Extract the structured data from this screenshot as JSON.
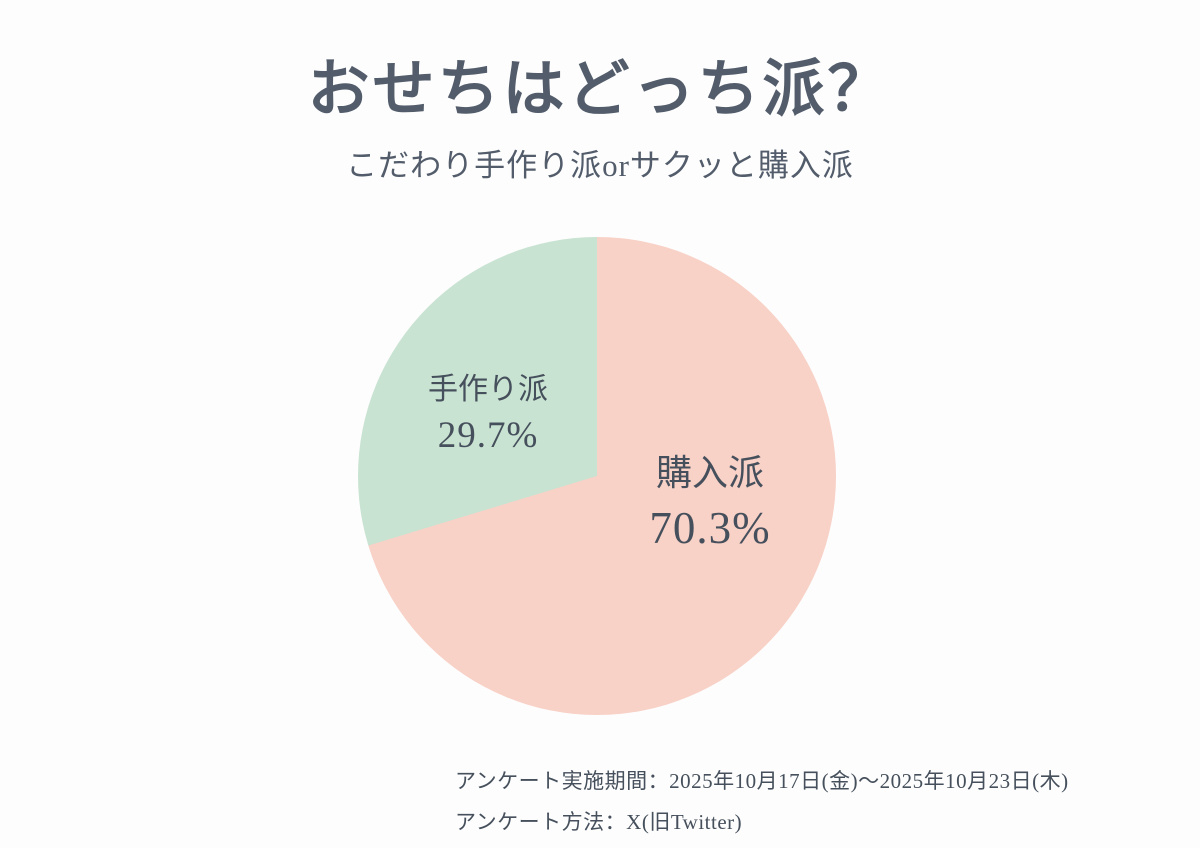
{
  "title": "おせちはどっち派？",
  "subtitle": "こだわり手作り派orサクッと購入派",
  "chart_data": {
    "type": "pie",
    "title": "おせちはどっち派？",
    "subtitle": "こだわり手作り派orサクッと購入派",
    "direction": "clockwise",
    "start_angle_deg": 0,
    "legend_position": "none",
    "labels_inside": true,
    "slices": [
      {
        "label": "購入派",
        "value": 70.3,
        "display_value": "70.3%",
        "color": "#f8d1c7"
      },
      {
        "label": "手作り派",
        "value": 29.7,
        "display_value": "29.7%",
        "color": "#c9e3d2"
      }
    ]
  },
  "footer": {
    "line1": "アンケート実施期間：2025年10月17日(金)～2025年10月23日(木)",
    "line2": "アンケート方法：X(旧Twitter)"
  },
  "colors": {
    "background": "#fdfdfd",
    "text_dark": "#525c6a",
    "text_label": "#46505c",
    "buy_pink": "#f8d1c7",
    "handmade_green": "#c9e3d2"
  }
}
